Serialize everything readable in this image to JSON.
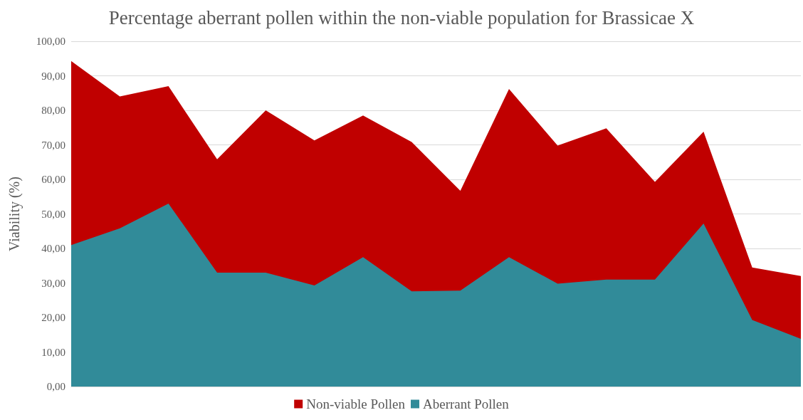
{
  "chart_data": {
    "type": "area",
    "title": "Percentage aberrant pollen within the non-viable population for Brassicae X",
    "ylabel": "Viability (%)",
    "categories": [
      null,
      null,
      null,
      null,
      null,
      null,
      null,
      null,
      null,
      null,
      null,
      null,
      null,
      null,
      null,
      null
    ],
    "series": [
      {
        "name": "Non-viable Pollen",
        "color": "#c00000",
        "values": [
          94.3,
          84.0,
          87.0,
          65.8,
          80.0,
          71.3,
          78.5,
          70.8,
          56.7,
          86.2,
          69.8,
          74.8,
          59.3,
          73.8,
          34.5,
          32.0
        ]
      },
      {
        "name": "Aberrant Pollen",
        "color": "#318b99",
        "values": [
          41.0,
          45.8,
          53.0,
          33.0,
          33.0,
          29.3,
          37.5,
          27.6,
          27.8,
          37.5,
          29.8,
          31.0,
          31.0,
          47.2,
          19.3,
          13.8
        ]
      }
    ],
    "ylim": [
      0,
      100
    ],
    "yticks": [
      {
        "value": 0,
        "label": "0,00"
      },
      {
        "value": 10,
        "label": "10,00"
      },
      {
        "value": 20,
        "label": "20,00"
      },
      {
        "value": 30,
        "label": "30,00"
      },
      {
        "value": 40,
        "label": "40,00"
      },
      {
        "value": 50,
        "label": "50,00"
      },
      {
        "value": 60,
        "label": "60,00"
      },
      {
        "value": 70,
        "label": "70,00"
      },
      {
        "value": 80,
        "label": "80,00"
      },
      {
        "value": 90,
        "label": "90,00"
      },
      {
        "value": 100,
        "label": "100,00"
      }
    ],
    "grid": "y",
    "legend": "bottom",
    "marker": "none"
  }
}
